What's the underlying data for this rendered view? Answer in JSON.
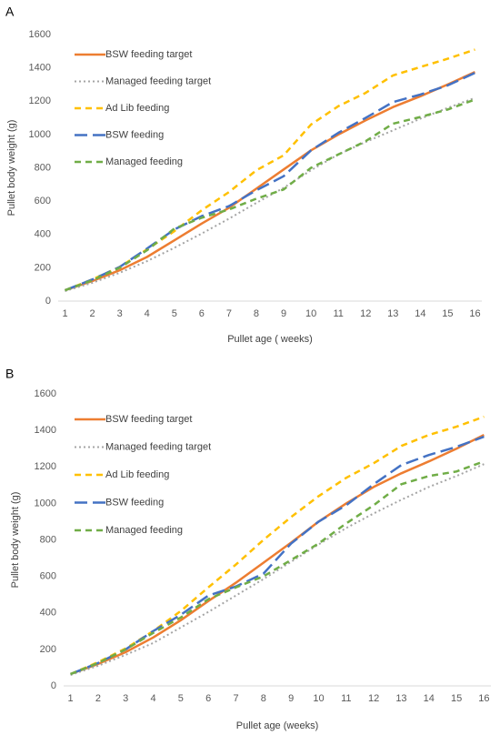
{
  "chart_data": [
    {
      "panel_label": "A",
      "type": "line",
      "xlabel": "Pullet age ( weeks)",
      "ylabel": "Pullet body weight (g)",
      "categories": [
        "1",
        "2",
        "3",
        "4",
        "5",
        "6",
        "7",
        "8",
        "9",
        "10",
        "11",
        "12",
        "13",
        "14",
        "15",
        "16"
      ],
      "ylim": [
        0,
        1600
      ],
      "yticks": [
        "0",
        "200",
        "400",
        "600",
        "800",
        "1000",
        "1200",
        "1400",
        "1600"
      ],
      "grid": false,
      "legend_position": "top-left",
      "series": [
        {
          "name": "BSW feeding target",
          "color": "#ED7D31",
          "dash": "solid",
          "values": [
            65,
            120,
            185,
            265,
            365,
            465,
            560,
            675,
            790,
            905,
            1000,
            1085,
            1165,
            1230,
            1300,
            1375
          ]
        },
        {
          "name": "Managed feeding target",
          "color": "#A5A5A5",
          "dash": "dotted",
          "values": [
            60,
            110,
            170,
            240,
            320,
            405,
            495,
            590,
            680,
            785,
            880,
            955,
            1025,
            1095,
            1160,
            1220
          ]
        },
        {
          "name": "Ad Lib feeding",
          "color": "#FFC000",
          "dash": "dash",
          "values": [
            65,
            130,
            205,
            310,
            420,
            545,
            655,
            785,
            875,
            1060,
            1170,
            1250,
            1355,
            1405,
            1455,
            1510
          ]
        },
        {
          "name": "BSW feeding",
          "color": "#4472C4",
          "dash": "longdash",
          "values": [
            65,
            130,
            205,
            315,
            430,
            510,
            570,
            665,
            750,
            905,
            1010,
            1100,
            1195,
            1240,
            1295,
            1370
          ]
        },
        {
          "name": "Managed  feeding",
          "color": "#70AD47",
          "dash": "dash",
          "values": [
            65,
            125,
            200,
            305,
            435,
            500,
            550,
            615,
            670,
            800,
            880,
            960,
            1065,
            1105,
            1150,
            1210
          ]
        }
      ]
    },
    {
      "panel_label": "B",
      "type": "line",
      "xlabel": "Pullet age (weeks)",
      "ylabel": "Pullet body weight (g)",
      "categories": [
        "1",
        "2",
        "3",
        "4",
        "5",
        "6",
        "7",
        "8",
        "9",
        "10",
        "11",
        "12",
        "13",
        "14",
        "15",
        "16"
      ],
      "ylim": [
        0,
        1600
      ],
      "yticks": [
        "0",
        "200",
        "400",
        "600",
        "800",
        "1000",
        "1200",
        "1400",
        "1600"
      ],
      "grid": false,
      "legend_position": "top-left",
      "series": [
        {
          "name": "BSW feeding target",
          "color": "#ED7D31",
          "dash": "solid",
          "values": [
            65,
            120,
            185,
            265,
            360,
            465,
            565,
            675,
            785,
            900,
            1000,
            1090,
            1165,
            1230,
            1300,
            1375
          ]
        },
        {
          "name": "Managed feeding target",
          "color": "#A5A5A5",
          "dash": "dotted",
          "values": [
            60,
            110,
            170,
            235,
            320,
            405,
            495,
            585,
            680,
            775,
            865,
            945,
            1020,
            1090,
            1150,
            1215
          ]
        },
        {
          "name": "Ad Lib feeding",
          "color": "#FFC000",
          "dash": "dash",
          "values": [
            65,
            130,
            205,
            300,
            410,
            540,
            665,
            800,
            925,
            1040,
            1140,
            1220,
            1315,
            1375,
            1420,
            1475
          ]
        },
        {
          "name": "BSW feeding",
          "color": "#4472C4",
          "dash": "longdash",
          "values": [
            65,
            125,
            200,
            300,
            390,
            495,
            545,
            615,
            780,
            900,
            990,
            1105,
            1210,
            1265,
            1310,
            1365
          ]
        },
        {
          "name": "Managed  feeding",
          "color": "#70AD47",
          "dash": "dash",
          "values": [
            65,
            125,
            200,
            290,
            375,
            475,
            540,
            600,
            690,
            780,
            890,
            990,
            1105,
            1150,
            1175,
            1230
          ]
        }
      ]
    }
  ]
}
